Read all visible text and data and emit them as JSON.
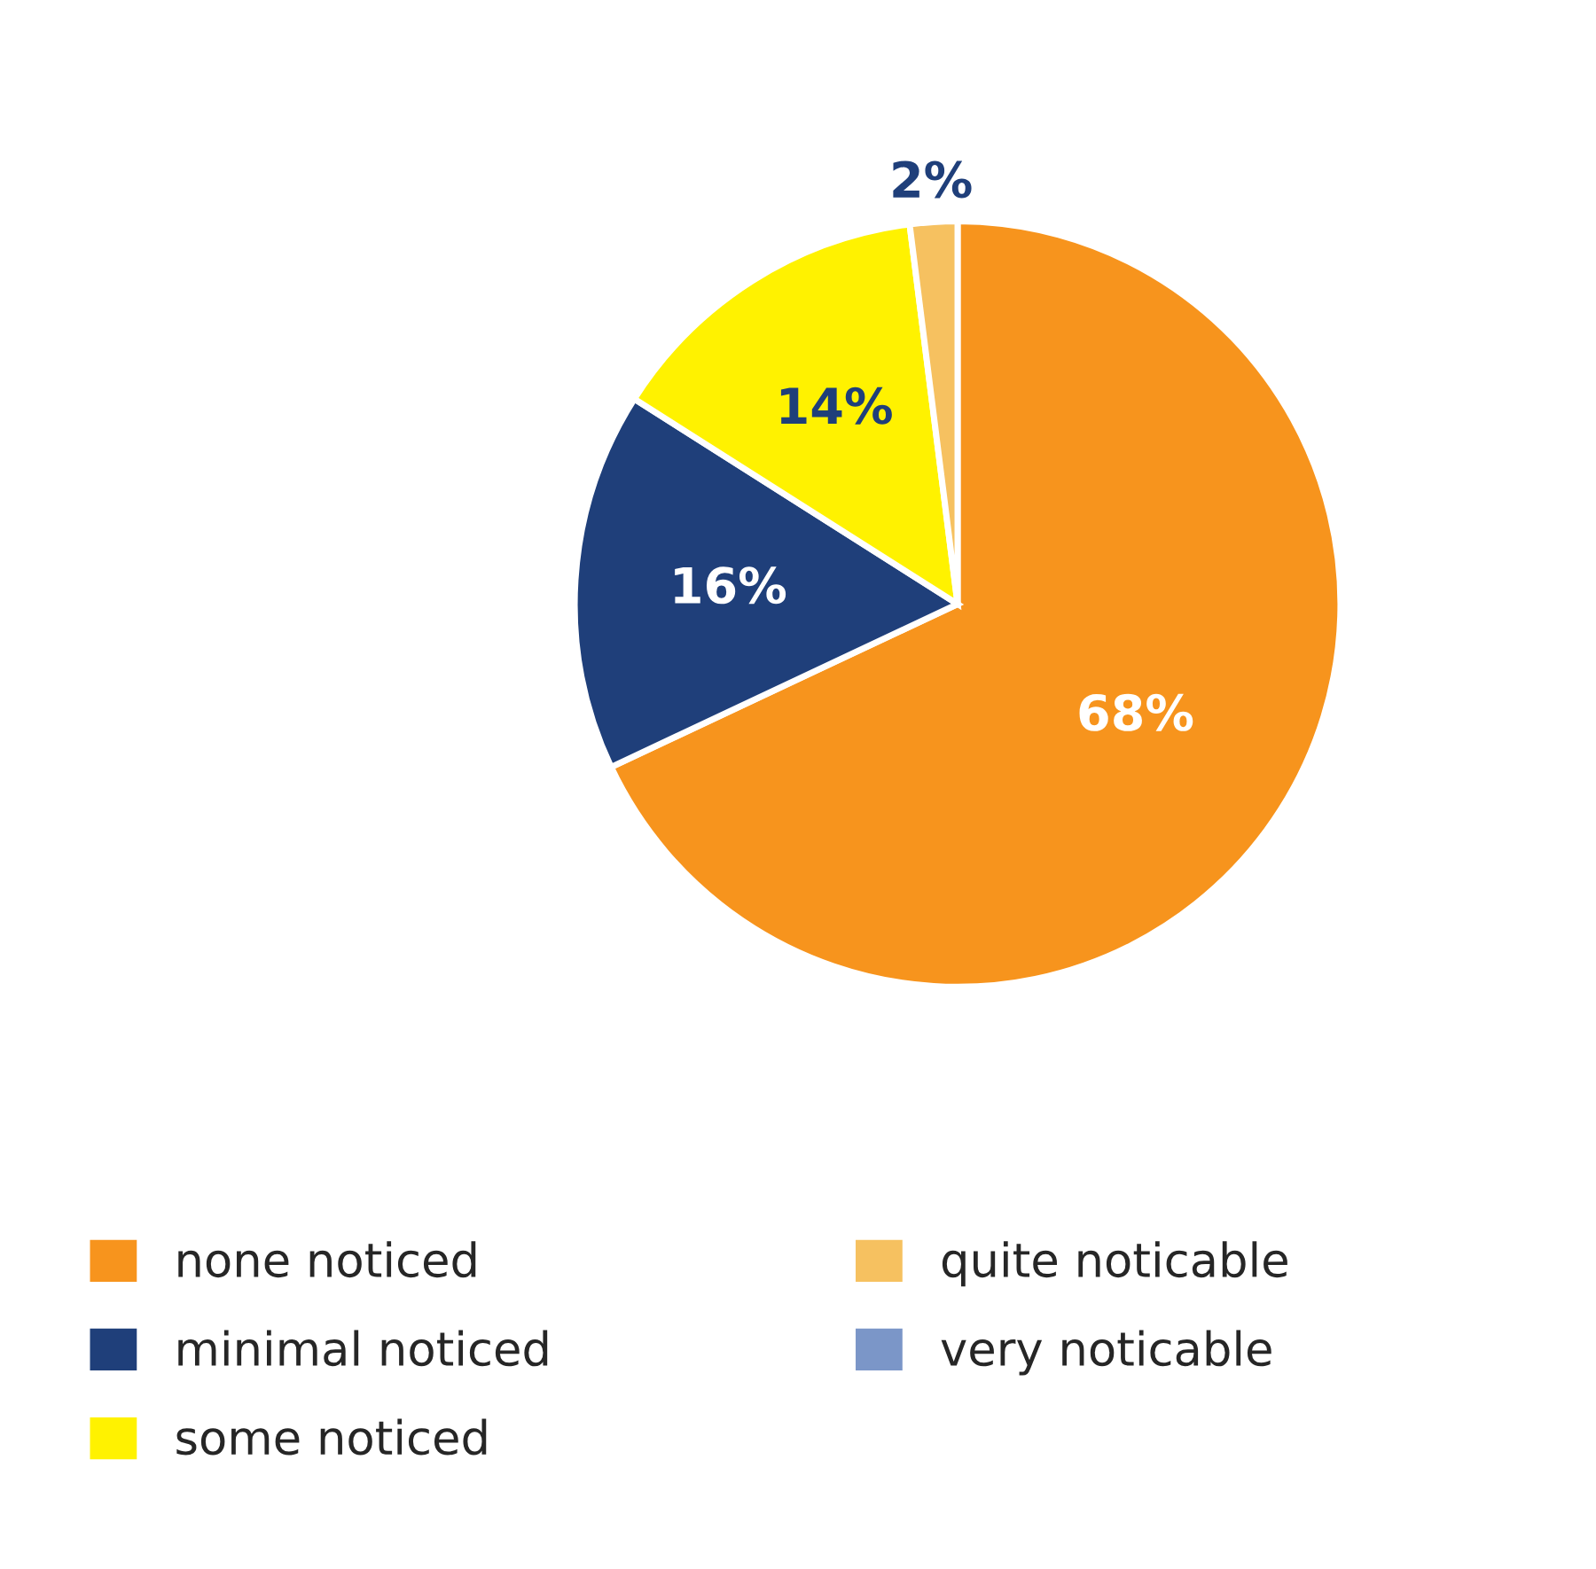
{
  "chart_data": {
    "type": "pie",
    "categories": [
      "none noticed",
      "minimal noticed",
      "some noticed",
      "quite noticable",
      "very noticable"
    ],
    "values": [
      68,
      16,
      14,
      2,
      0
    ],
    "colors": [
      "#f7941d",
      "#1f3f7a",
      "#fff200",
      "#f6c160",
      "#7b96c8"
    ],
    "value_labels": [
      "68%",
      "16%",
      "14%",
      "2%",
      null
    ],
    "legend": "bottom"
  }
}
